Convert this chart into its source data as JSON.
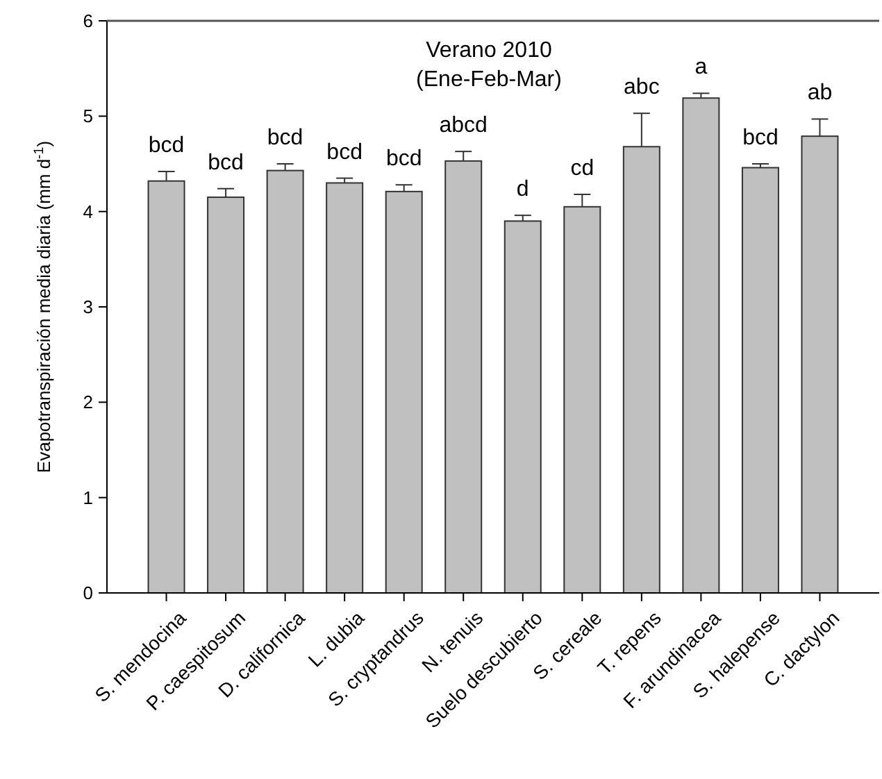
{
  "chart_data": {
    "type": "bar",
    "title": "Verano 2010",
    "subtitle": "(Ene-Feb-Mar)",
    "ylabel": "Evapotranspiración media diaria (mm d$^{-1}$)",
    "categories": [
      "S. mendocina",
      "P. caespitosum",
      "D. californica",
      "L. dubia",
      "S. cryptandrus",
      "N. tenuis",
      "Suelo descubierto",
      "S. cereale",
      "T. repens",
      "F. arundinacea",
      "S. halepense",
      "C. dactylon"
    ],
    "values": [
      4.32,
      4.15,
      4.43,
      4.3,
      4.21,
      4.53,
      3.9,
      4.05,
      4.68,
      5.19,
      4.46,
      4.79
    ],
    "errors": [
      0.1,
      0.09,
      0.07,
      0.05,
      0.07,
      0.1,
      0.06,
      0.13,
      0.35,
      0.05,
      0.04,
      0.18
    ],
    "color": "#c0c0c0",
    "ylim": [
      0,
      6
    ],
    "yticks": [
      0,
      1,
      2,
      3,
      4,
      5,
      6
    ],
    "grid": false,
    "annotations": [
      "bcd",
      "bcd",
      "bcd",
      "bcd",
      "bcd",
      "abcd",
      "d",
      "cd",
      "abc",
      "a",
      "bcd",
      "ab"
    ]
  }
}
